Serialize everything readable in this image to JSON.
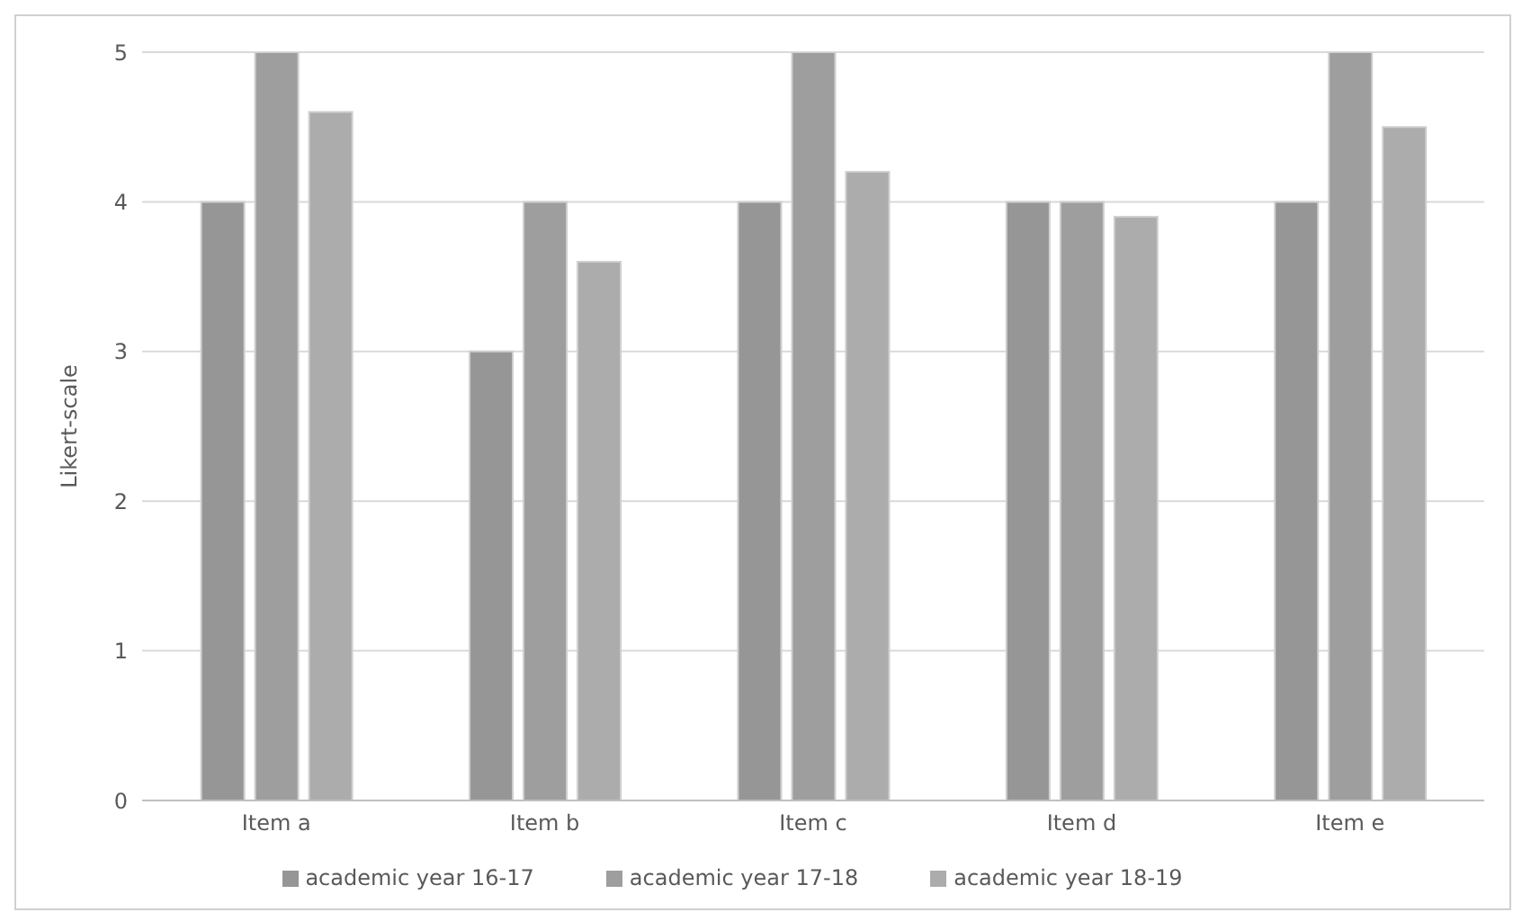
{
  "chart_data": {
    "type": "bar",
    "ylabel": "Likert-scale",
    "categories": [
      "Item a",
      "Item b",
      "Item c",
      "Item d",
      "Item e"
    ],
    "series": [
      {
        "name": "academic year 16-17",
        "color": "#969696",
        "values": [
          4,
          3,
          4,
          4,
          4
        ]
      },
      {
        "name": "academic year 17-18",
        "color": "#9e9e9e",
        "values": [
          5,
          4,
          5,
          4,
          5
        ]
      },
      {
        "name": "academic year 18-19",
        "color": "#acacac",
        "values": [
          4.6,
          3.6,
          4.2,
          3.9,
          4.5
        ]
      }
    ],
    "ylim": [
      0,
      5
    ],
    "yticks": [
      0,
      1,
      2,
      3,
      4,
      5
    ],
    "grid": "y",
    "legend": "bottom"
  }
}
